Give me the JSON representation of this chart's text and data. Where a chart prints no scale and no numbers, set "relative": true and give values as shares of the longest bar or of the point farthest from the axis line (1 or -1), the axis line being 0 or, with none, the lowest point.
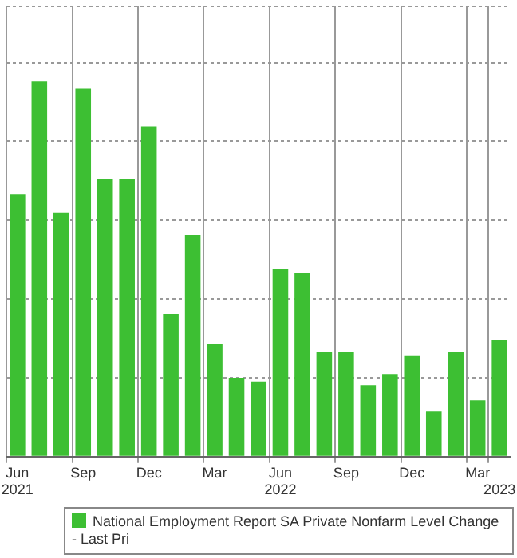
{
  "chart_data": {
    "type": "bar",
    "relative": true,
    "categories": [
      "Jun\n2021",
      null,
      null,
      "Sep",
      null,
      null,
      "Dec",
      null,
      null,
      "Mar",
      null,
      null,
      "Jun\n2022",
      null,
      null,
      "Sep",
      null,
      null,
      "Dec",
      null,
      null,
      "Mar",
      "\n2023"
    ],
    "series": [
      {
        "name": "National Employment Report SA Private Nonfarm Level Change - Last Pri",
        "color": "#3dbf33",
        "values": [
          0.7,
          1,
          0.65,
          0.98,
          0.74,
          0.74,
          0.88,
          0.38,
          0.59,
          0.3,
          0.21,
          0.2,
          0.5,
          0.49,
          0.28,
          0.28,
          0.19,
          0.22,
          0.27,
          0.12,
          0.28,
          0.15,
          0.31
        ]
      }
    ],
    "grid": true,
    "legend": "bottom"
  }
}
